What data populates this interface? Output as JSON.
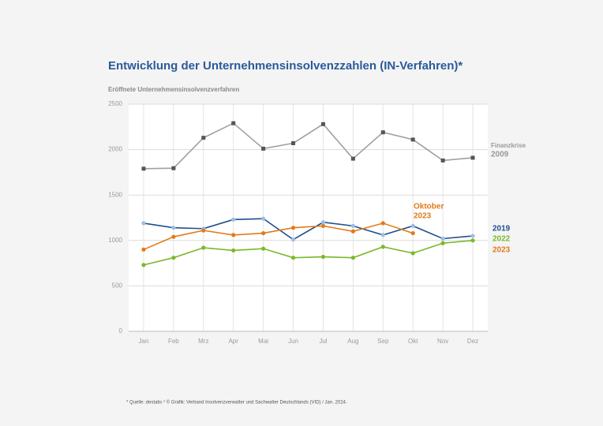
{
  "chart_data": {
    "type": "line",
    "title": "Entwicklung der Unternehmensinsolvenzzahlen (IN-Verfahren)*",
    "y_label": "Eröffnete Unternehmensinsolvenzverfahren",
    "footnote": "* Quelle: destatis ¹ © Grafik: Verband Insolvenzverwalter und Sachwalter Deutschlands (VID) / Jan. 2024.",
    "categories": [
      "Jan",
      "Feb",
      "Mrz",
      "Apr",
      "Mai",
      "Jun",
      "Jul",
      "Aug",
      "Sep",
      "Okt",
      "Nov",
      "Dez"
    ],
    "ylim": [
      0,
      2500
    ],
    "yticks": [
      0,
      500,
      1000,
      1500,
      2000,
      2500
    ],
    "grid": true,
    "series": [
      {
        "name": "2009",
        "color": "#a0a0a0",
        "marker_color": "#555555",
        "marker": "square",
        "values": [
          1790,
          1795,
          2130,
          2290,
          2010,
          2070,
          2280,
          1900,
          2190,
          2110,
          1880,
          1910
        ]
      },
      {
        "name": "2019",
        "color": "#1f4e8c",
        "marker_color": "#9dbde6",
        "marker": "circle",
        "values": [
          1190,
          1140,
          1130,
          1230,
          1240,
          1010,
          1200,
          1160,
          1060,
          1160,
          1020,
          1050
        ]
      },
      {
        "name": "2022",
        "color": "#7ab929",
        "marker_color": "#7ab929",
        "marker": "circle",
        "values": [
          730,
          810,
          920,
          890,
          910,
          810,
          820,
          810,
          930,
          860,
          970,
          1000
        ]
      },
      {
        "name": "2023",
        "color": "#e07b1a",
        "marker_color": "#e07b1a",
        "marker": "circle",
        "values": [
          900,
          1040,
          1110,
          1060,
          1080,
          1140,
          1160,
          1100,
          1190,
          1080,
          null,
          null
        ]
      }
    ],
    "annotations": [
      {
        "text": "Finanzkrise",
        "series": 0
      },
      {
        "text": "Oktober",
        "series": 3
      }
    ]
  }
}
